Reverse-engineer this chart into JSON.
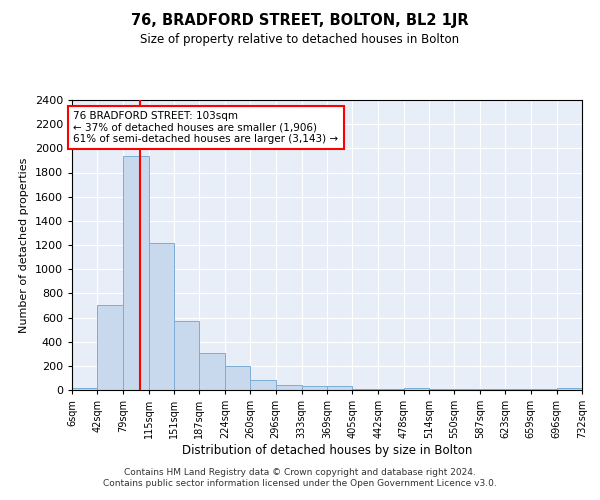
{
  "title": "76, BRADFORD STREET, BOLTON, BL2 1JR",
  "subtitle": "Size of property relative to detached houses in Bolton",
  "xlabel": "Distribution of detached houses by size in Bolton",
  "ylabel": "Number of detached properties",
  "bar_color": "#c9d9ed",
  "bar_edge_color": "#7aaed6",
  "background_color": "#e8eef8",
  "grid_color": "#ffffff",
  "vline_color": "red",
  "vline_x": 103,
  "annotation_text": "76 BRADFORD STREET: 103sqm\n← 37% of detached houses are smaller (1,906)\n61% of semi-detached houses are larger (3,143) →",
  "annotation_box_color": "white",
  "annotation_box_edge": "red",
  "bin_edges": [
    6,
    42,
    79,
    115,
    151,
    187,
    224,
    260,
    296,
    333,
    369,
    405,
    442,
    478,
    514,
    550,
    587,
    623,
    659,
    696,
    732
  ],
  "bin_counts": [
    20,
    700,
    1940,
    1220,
    570,
    310,
    200,
    85,
    40,
    30,
    30,
    5,
    5,
    20,
    5,
    5,
    5,
    5,
    5,
    20
  ],
  "ylim": [
    0,
    2400
  ],
  "yticks": [
    0,
    200,
    400,
    600,
    800,
    1000,
    1200,
    1400,
    1600,
    1800,
    2000,
    2200,
    2400
  ],
  "footer_text": "Contains HM Land Registry data © Crown copyright and database right 2024.\nContains public sector information licensed under the Open Government Licence v3.0.",
  "tick_labels": [
    "6sqm",
    "42sqm",
    "79sqm",
    "115sqm",
    "151sqm",
    "187sqm",
    "224sqm",
    "260sqm",
    "296sqm",
    "333sqm",
    "369sqm",
    "405sqm",
    "442sqm",
    "478sqm",
    "514sqm",
    "550sqm",
    "587sqm",
    "623sqm",
    "659sqm",
    "696sqm",
    "732sqm"
  ]
}
